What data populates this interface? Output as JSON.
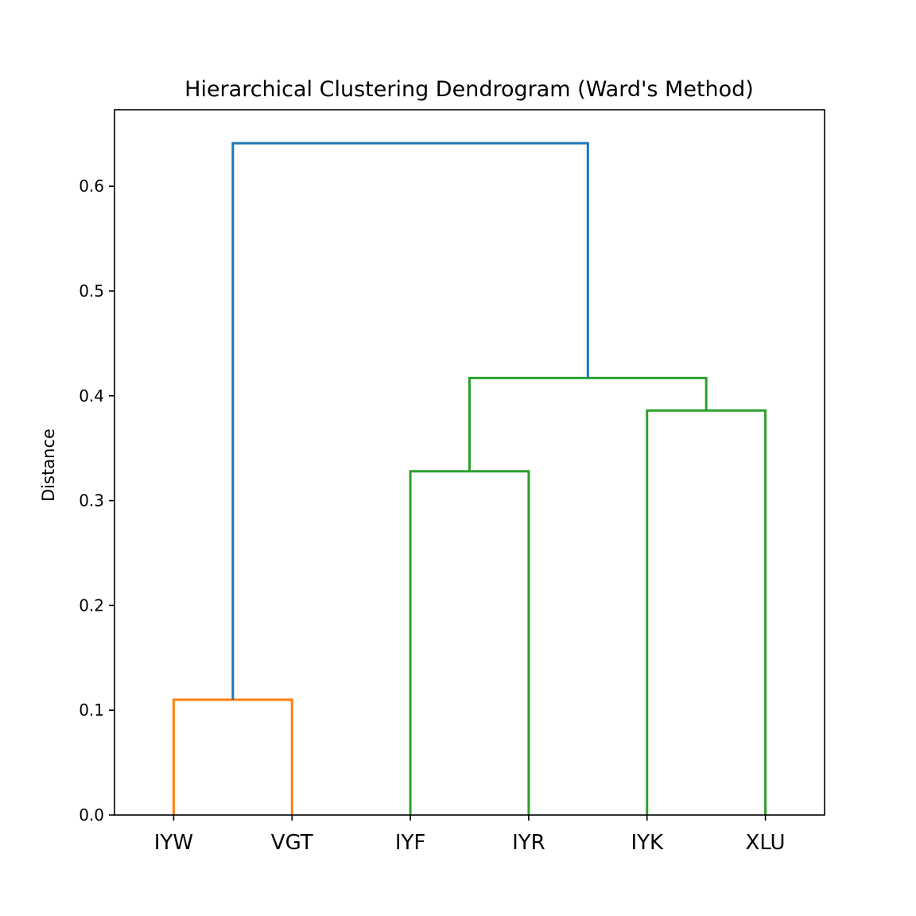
{
  "chart_data": {
    "type": "dendrogram",
    "title": "Hierarchical Clustering Dendrogram (Ward's Method)",
    "xlabel": "",
    "ylabel": "Distance",
    "ylim": [
      0,
      0.673
    ],
    "yticks": [
      "0.0",
      "0.1",
      "0.2",
      "0.3",
      "0.4",
      "0.5",
      "0.6"
    ],
    "leaves": [
      "IYW",
      "VGT",
      "IYF",
      "IYR",
      "IYK",
      "XLU"
    ],
    "merges": [
      {
        "left": "IYW",
        "right": "VGT",
        "height": 0.11,
        "color": "#ff7f0e"
      },
      {
        "left": "IYF",
        "right": "IYR",
        "height": 0.328,
        "color": "#2ca02c"
      },
      {
        "left": "IYK",
        "right": "XLU",
        "height": 0.386,
        "color": "#2ca02c"
      },
      {
        "left": "IYF+IYR",
        "right": "IYK+XLU",
        "height": 0.417,
        "color": "#2ca02c"
      },
      {
        "left": "IYW+VGT",
        "right": "IYF+IYR+IYK+XLU",
        "height": 0.641,
        "color": "#1f77b4"
      }
    ],
    "grid": false,
    "legend": "none"
  }
}
